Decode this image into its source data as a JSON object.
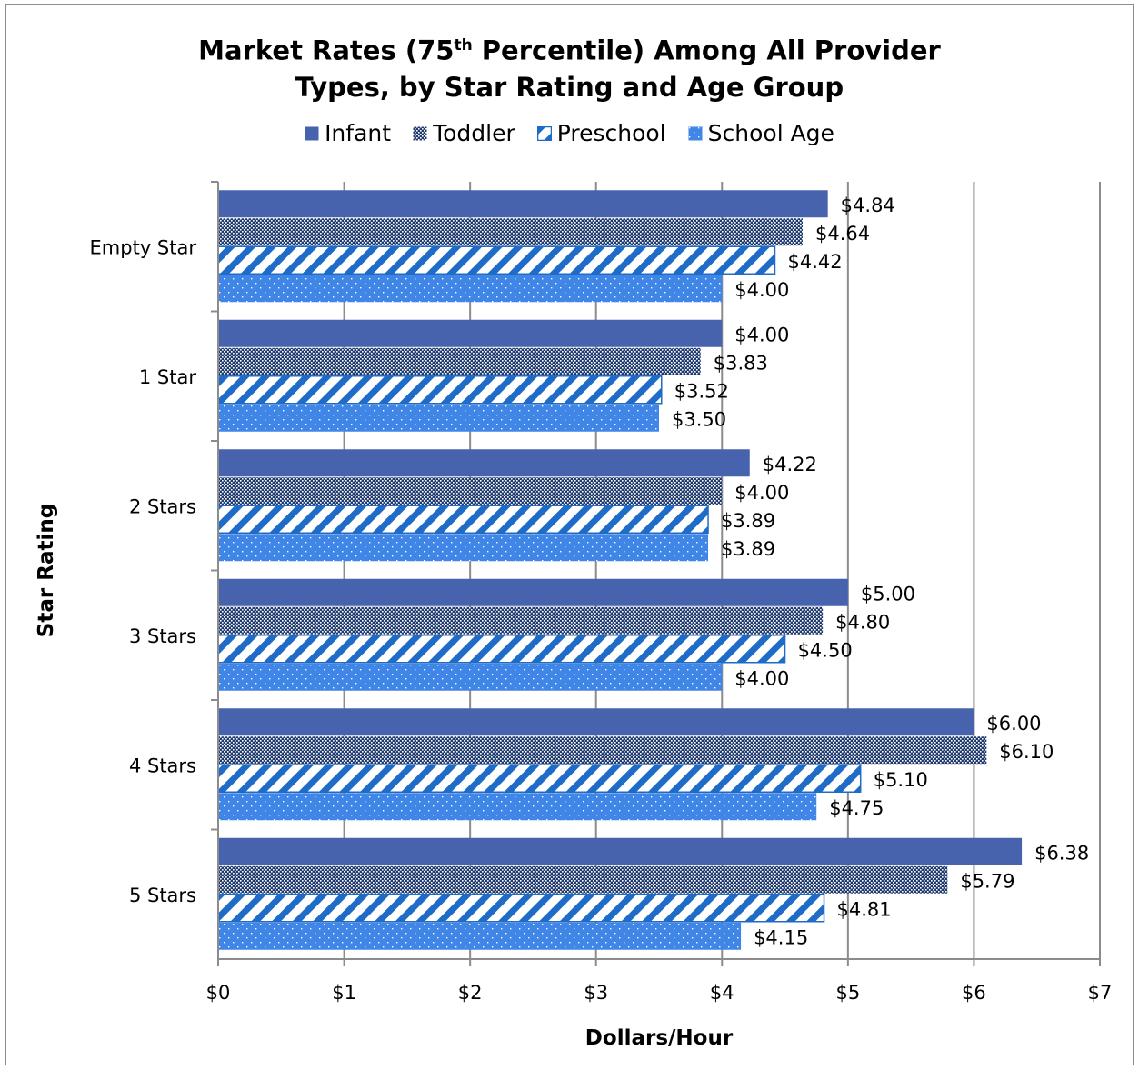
{
  "chart_data": {
    "type": "bar",
    "orientation": "horizontal",
    "title_main": "Market Rates (75",
    "title_sup": "th",
    "title_rest": " Percentile) Among All Provider",
    "title_line2": "Types, by Star Rating and Age Group",
    "xlabel": "Dollars/Hour",
    "ylabel": "Star Rating",
    "xlim": [
      0,
      7
    ],
    "xticks": [
      "$0",
      "$1",
      "$2",
      "$3",
      "$4",
      "$5",
      "$6",
      "$7"
    ],
    "grid": true,
    "legend_position": "top",
    "categories": [
      "Empty Star",
      "1 Star",
      "2 Stars",
      "3 Stars",
      "4 Stars",
      "5 Stars"
    ],
    "series": [
      {
        "name": "Infant",
        "pattern": "solid",
        "color": "#4863ae",
        "values": [
          4.84,
          4.0,
          4.22,
          5.0,
          6.0,
          6.38
        ],
        "labels": [
          "$4.84",
          "$4.00",
          "$4.22",
          "$5.00",
          "$6.00",
          "$6.38"
        ]
      },
      {
        "name": "Toddler",
        "pattern": "dots-dense",
        "color": "#1f3a6e",
        "values": [
          4.64,
          3.83,
          4.0,
          4.8,
          6.1,
          5.79
        ],
        "labels": [
          "$4.64",
          "$3.83",
          "$4.00",
          "$4.80",
          "$6.10",
          "$5.79"
        ]
      },
      {
        "name": "Preschool",
        "pattern": "diagonal-stripes",
        "color": "#1f6bc8",
        "values": [
          4.42,
          3.52,
          3.89,
          4.5,
          5.1,
          4.81
        ],
        "labels": [
          "$4.42",
          "$3.52",
          "$3.89",
          "$4.50",
          "$5.10",
          "$4.81"
        ]
      },
      {
        "name": "School Age",
        "pattern": "dots-sparse",
        "color": "#3f86e6",
        "values": [
          4.0,
          3.5,
          3.89,
          4.0,
          4.75,
          4.15
        ],
        "labels": [
          "$4.00",
          "$3.50",
          "$3.89",
          "$4.00",
          "$4.75",
          "$4.15"
        ]
      }
    ]
  }
}
